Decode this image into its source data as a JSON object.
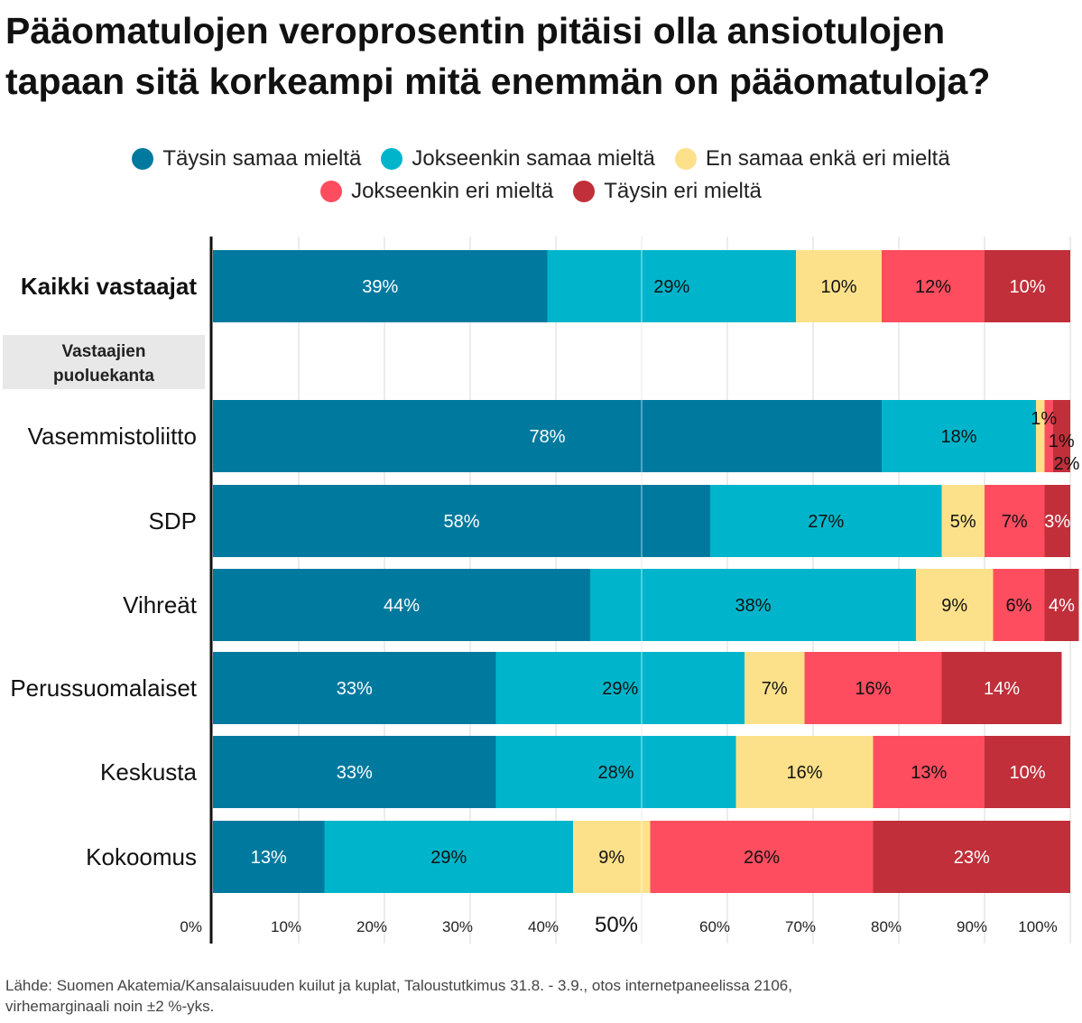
{
  "title_line1": "Pääomatulojen veroprosentin pitäisi olla ansiotulojen",
  "title_line2": "tapaan sitä korkeampi mitä enemmän on pääomatuloja?",
  "source_line1": "Lähde: Suomen Akatemia/Kansalaisuuden kuilut ja kuplat, Taloustutkimus 31.8. - 3.9., otos internetpaneelissa 2106,",
  "source_line2": "virhemarginaali noin ±2 %-yks.",
  "chart_data": {
    "type": "bar",
    "orientation": "horizontal",
    "stacked": true,
    "title": "Pääomatulojen veroprosentin pitäisi olla ansiotulojen tapaan sitä korkeampi mitä enemmän on pääomatuloja?",
    "group_label_line1": "Vastaajien",
    "group_label_line2": "puoluekanta",
    "categories": [
      "Kaikki vastaajat",
      "Vasemmistoliitto",
      "SDP",
      "Vihreät",
      "Perussuomalaiset",
      "Keskusta",
      "Kokoomus"
    ],
    "series": [
      {
        "name": "Täysin samaa mieltä",
        "color": "#00799e",
        "label_color": "#ffffff",
        "values": [
          39,
          78,
          58,
          44,
          33,
          33,
          13
        ]
      },
      {
        "name": "Jokseenkin samaa mieltä",
        "color": "#00b5cb",
        "label_color": "#111111",
        "values": [
          29,
          18,
          27,
          38,
          29,
          28,
          29
        ]
      },
      {
        "name": "En samaa enkä eri mieltä",
        "color": "#fde18a",
        "label_color": "#111111",
        "values": [
          10,
          1,
          5,
          9,
          7,
          16,
          9
        ]
      },
      {
        "name": "Jokseenkin eri mieltä",
        "color": "#fd4d5f",
        "label_color": "#111111",
        "values": [
          12,
          1,
          7,
          6,
          16,
          13,
          26
        ]
      },
      {
        "name": "Täysin eri mieltä",
        "color": "#c02f3a",
        "label_color": "#ffffff",
        "values": [
          10,
          2,
          3,
          4,
          14,
          10,
          23
        ]
      }
    ],
    "xlim": [
      0,
      100
    ],
    "x_ticks": [
      "0%",
      "10%",
      "20%",
      "30%",
      "40%",
      "50%",
      "60%",
      "70%",
      "80%",
      "90%",
      "100%"
    ],
    "grid": true
  }
}
